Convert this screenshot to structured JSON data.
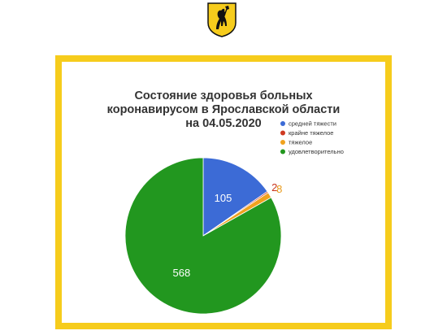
{
  "colors": {
    "frame": "#f6cc1c",
    "emblem_shield": "#f6cc1c",
    "emblem_outline": "#111111",
    "title": "#333333"
  },
  "emblem": {
    "icon": "yaroslavl-coat-of-arms-icon"
  },
  "chart_data": {
    "type": "pie",
    "title": "Состояние здоровья больных коронавирусом в Ярославской области на 04.05.2020",
    "title_lines": [
      "Состояние здоровья больных",
      "коронавирусом в Ярославской области",
      "на 04.05.2020"
    ],
    "legend_position": "top-right",
    "slices": [
      {
        "name": "средней тяжести",
        "value": 105,
        "color": "#3c6bd6",
        "label_color": "#ffffff"
      },
      {
        "name": "крайне тяжелое",
        "value": 2,
        "color": "#cf3a22",
        "label_color": "#c8351f"
      },
      {
        "name": "тяжелое",
        "value": 8,
        "color": "#f0a21e",
        "label_color": "#e89a1a"
      },
      {
        "name": "удовлетворительно",
        "value": 568,
        "color": "#22971f",
        "label_color": "#ffffff"
      }
    ]
  }
}
